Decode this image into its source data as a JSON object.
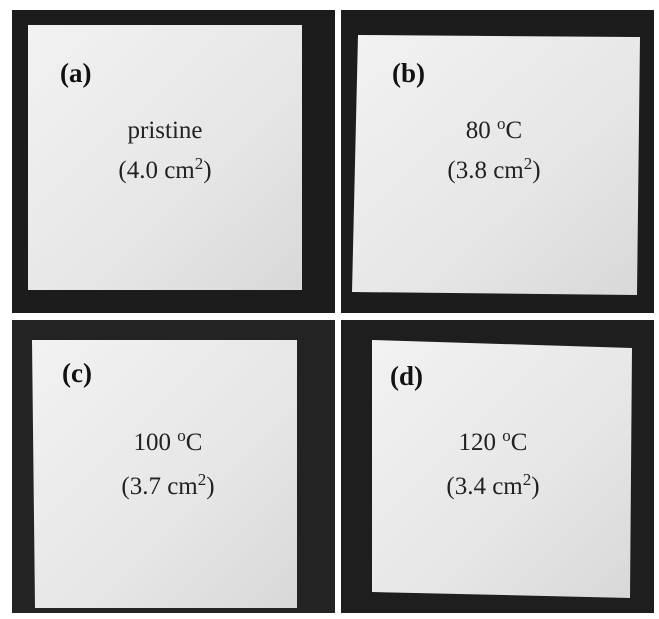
{
  "panels": [
    {
      "label": "(a)",
      "condition": {
        "text": "pristine"
      },
      "area": {
        "text": "(4.0 cm",
        "sup": "2",
        "close": ")"
      }
    },
    {
      "label": "(b)",
      "condition": {
        "text": "80 ",
        "sup": "o",
        "close": "C"
      },
      "area": {
        "text": "(3.8 cm",
        "sup": "2",
        "close": ")"
      }
    },
    {
      "label": "(c)",
      "condition": {
        "text": "100 ",
        "sup": "o",
        "close": "C"
      },
      "area": {
        "text": "(3.7 cm",
        "sup": "2",
        "close": ")"
      }
    },
    {
      "label": "(d)",
      "condition": {
        "text": "120 ",
        "sup": "o",
        "close": "C"
      },
      "area": {
        "text": "(3.4 cm",
        "sup": "2",
        "close": ")"
      }
    }
  ]
}
